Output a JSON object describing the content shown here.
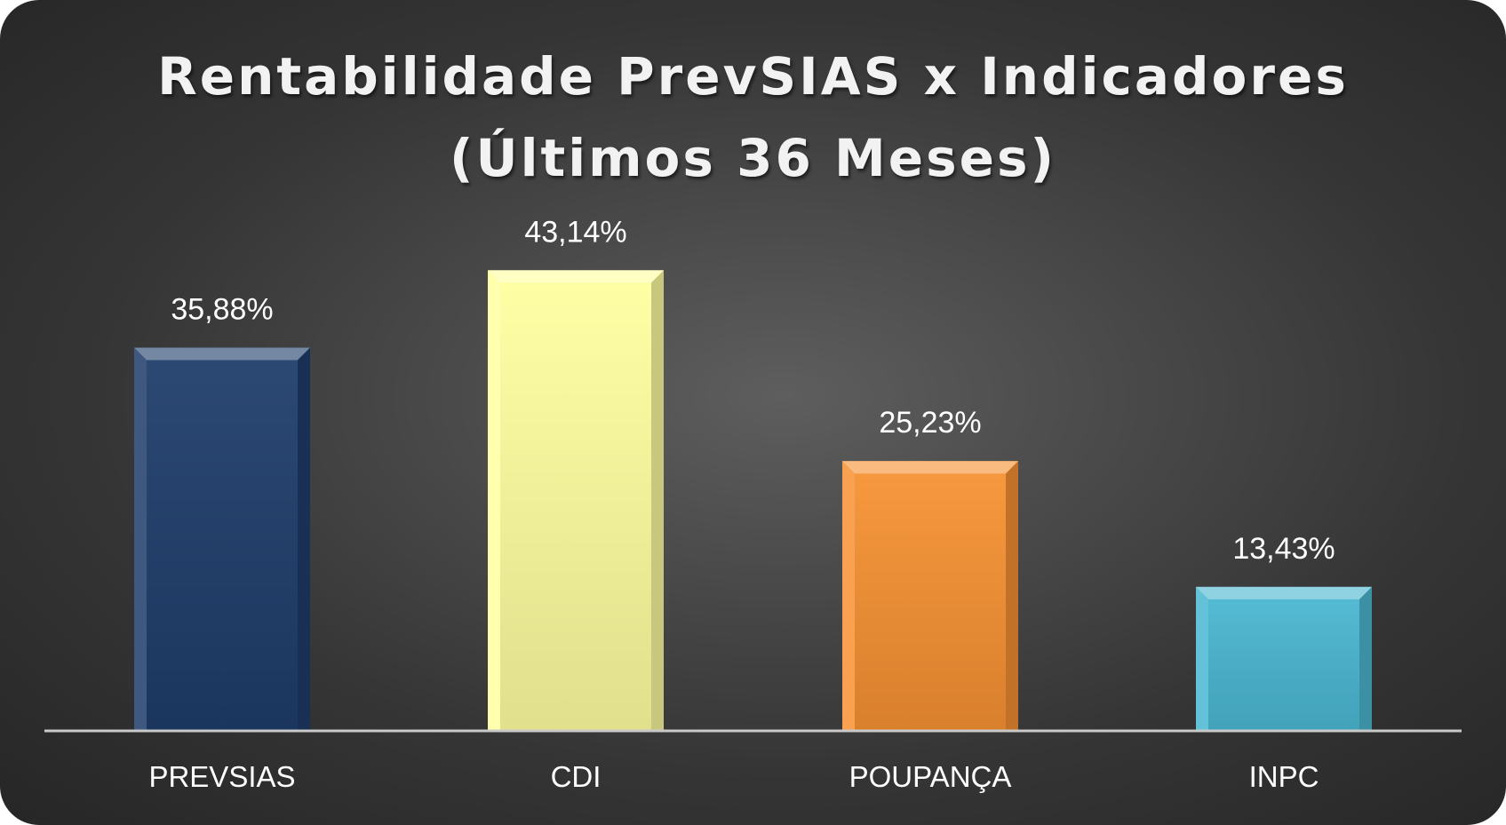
{
  "chart_data": {
    "type": "bar",
    "title_line1": "Rentabilidade PrevSIAS x Indicadores",
    "title_line2": "(Últimos 36 Meses)",
    "categories": [
      "PREVSIAS",
      "CDI",
      "POUPANÇA",
      "INPC"
    ],
    "values": [
      35.88,
      43.14,
      25.23,
      13.43
    ],
    "data_labels": [
      "35,88%",
      "43,14%",
      "25,23%",
      "13,43%"
    ],
    "colors": [
      "#1f3d6b",
      "#ffffa0",
      "#f79233",
      "#4bb8d2"
    ],
    "ylim": [
      0,
      50
    ],
    "grid": false,
    "legend": "none"
  }
}
